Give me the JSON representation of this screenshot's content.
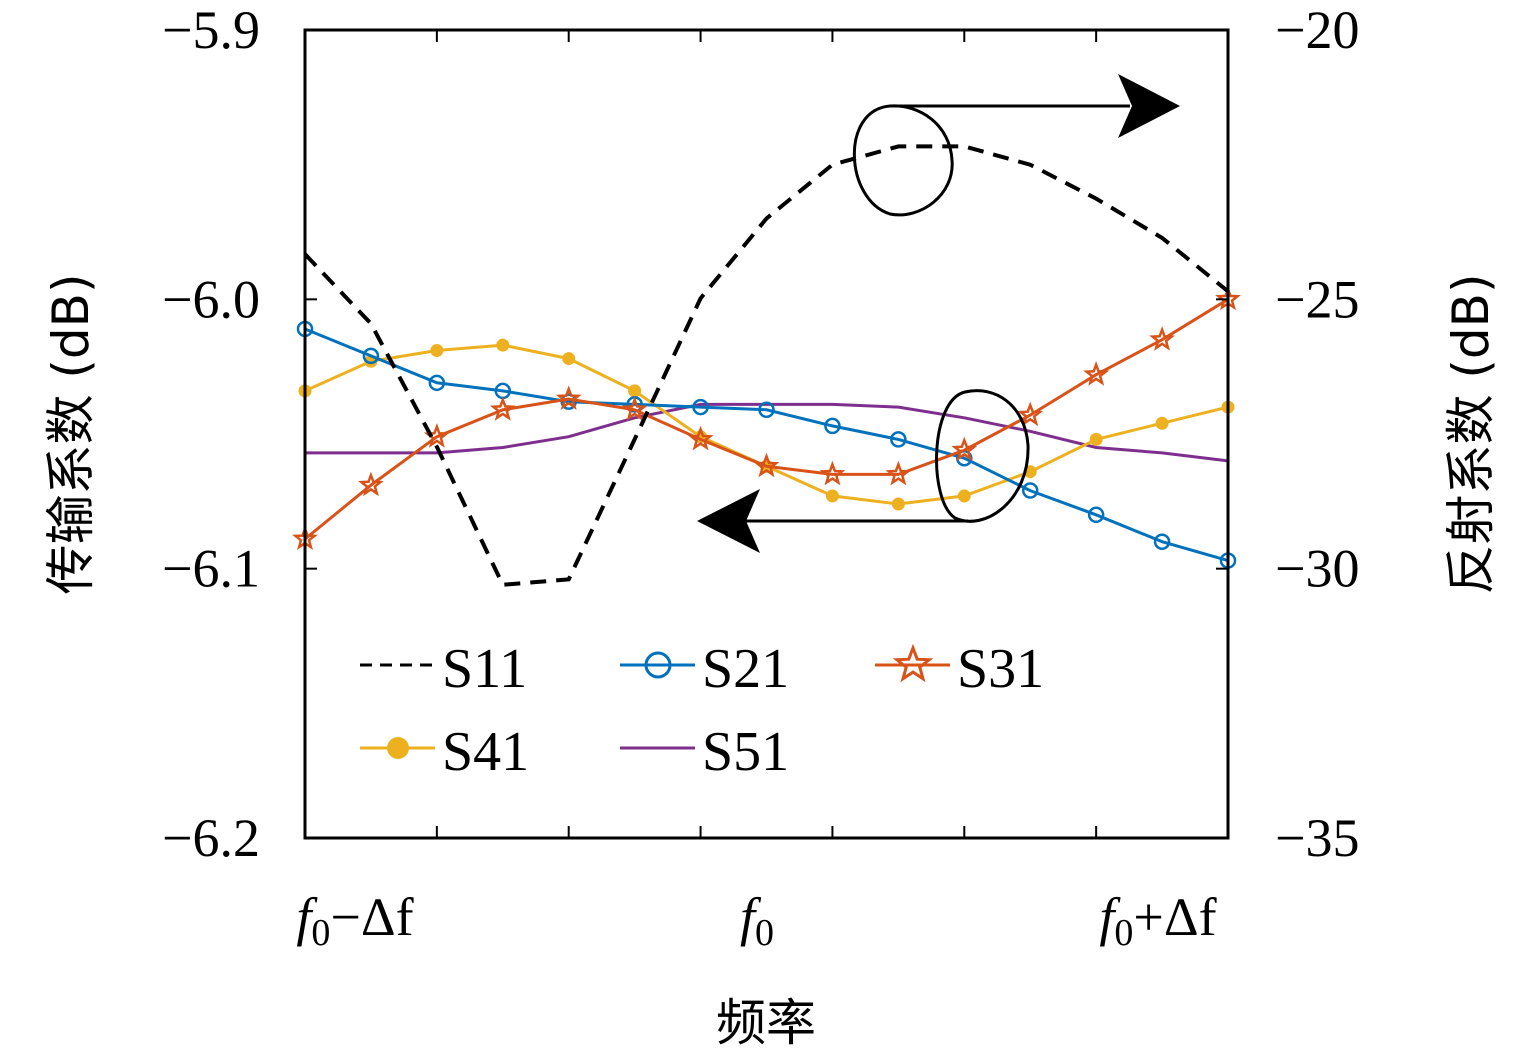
{
  "chart_data": {
    "type": "line",
    "xlabel": "频率",
    "ylabel_left": "传输系数 (dB)",
    "ylabel_right": "反射系数 (dB)",
    "x": [
      0,
      1,
      2,
      3,
      4,
      5,
      6,
      7,
      8,
      9,
      10,
      11,
      12,
      13,
      14
    ],
    "x_tick_labels": [
      {
        "at": 0,
        "base": "f",
        "sub": "0",
        "suffix": "−Δf"
      },
      {
        "at": 7,
        "base": "f",
        "sub": "0",
        "suffix": ""
      },
      {
        "at": 14,
        "base": "f",
        "sub": "0",
        "suffix": "+Δf"
      }
    ],
    "ylim_left": [
      -6.2,
      -5.9
    ],
    "yticks_left": [
      "−5.9",
      "−6.0",
      "−6.1",
      "−6.2"
    ],
    "ylim_right": [
      -35,
      -20
    ],
    "yticks_right": [
      "−20",
      "−25",
      "−30",
      "−35"
    ],
    "grid": false,
    "legend_placement": "lower-left",
    "series": [
      {
        "name": "S11",
        "axis": "right",
        "color": "#000000",
        "style": "dashed",
        "marker": "none",
        "values": [
          -24.16,
          -25.45,
          -27.74,
          -30.3,
          -30.2,
          -27.6,
          -24.98,
          -23.5,
          -22.5,
          -22.16,
          -22.16,
          -22.5,
          -23.13,
          -23.86,
          -24.85
        ]
      },
      {
        "name": "S21",
        "axis": "left",
        "color": "#0072BD",
        "style": "solid",
        "marker": "circle",
        "values": [
          -6.011,
          -6.021,
          -6.031,
          -6.034,
          -6.038,
          -6.039,
          -6.04,
          -6.041,
          -6.047,
          -6.052,
          -6.059,
          -6.071,
          -6.08,
          -6.09,
          -6.097
        ]
      },
      {
        "name": "S31",
        "axis": "left",
        "color": "#D95319",
        "style": "solid",
        "marker": "star",
        "values": [
          -6.089,
          -6.069,
          -6.051,
          -6.041,
          -6.037,
          -6.041,
          -6.052,
          -6.062,
          -6.065,
          -6.065,
          -6.056,
          -6.043,
          -6.028,
          -6.015,
          -6.0
        ]
      },
      {
        "name": "S41",
        "axis": "left",
        "color": "#EDB120",
        "style": "solid",
        "marker": "dot",
        "values": [
          -6.034,
          -6.023,
          -6.019,
          -6.017,
          -6.022,
          -6.034,
          -6.051,
          -6.062,
          -6.073,
          -6.076,
          -6.073,
          -6.064,
          -6.052,
          -6.046,
          -6.04
        ]
      },
      {
        "name": "S51",
        "axis": "left",
        "color": "#7E2F8E",
        "style": "solid",
        "marker": "none",
        "values": [
          -6.057,
          -6.057,
          -6.057,
          -6.055,
          -6.051,
          -6.044,
          -6.039,
          -6.039,
          -6.039,
          -6.04,
          -6.044,
          -6.049,
          -6.055,
          -6.057,
          -6.06
        ]
      }
    ],
    "annotations": [
      {
        "target": "S11",
        "direction": "right-axis"
      },
      {
        "target": "S21-S51",
        "direction": "left-axis"
      }
    ]
  }
}
